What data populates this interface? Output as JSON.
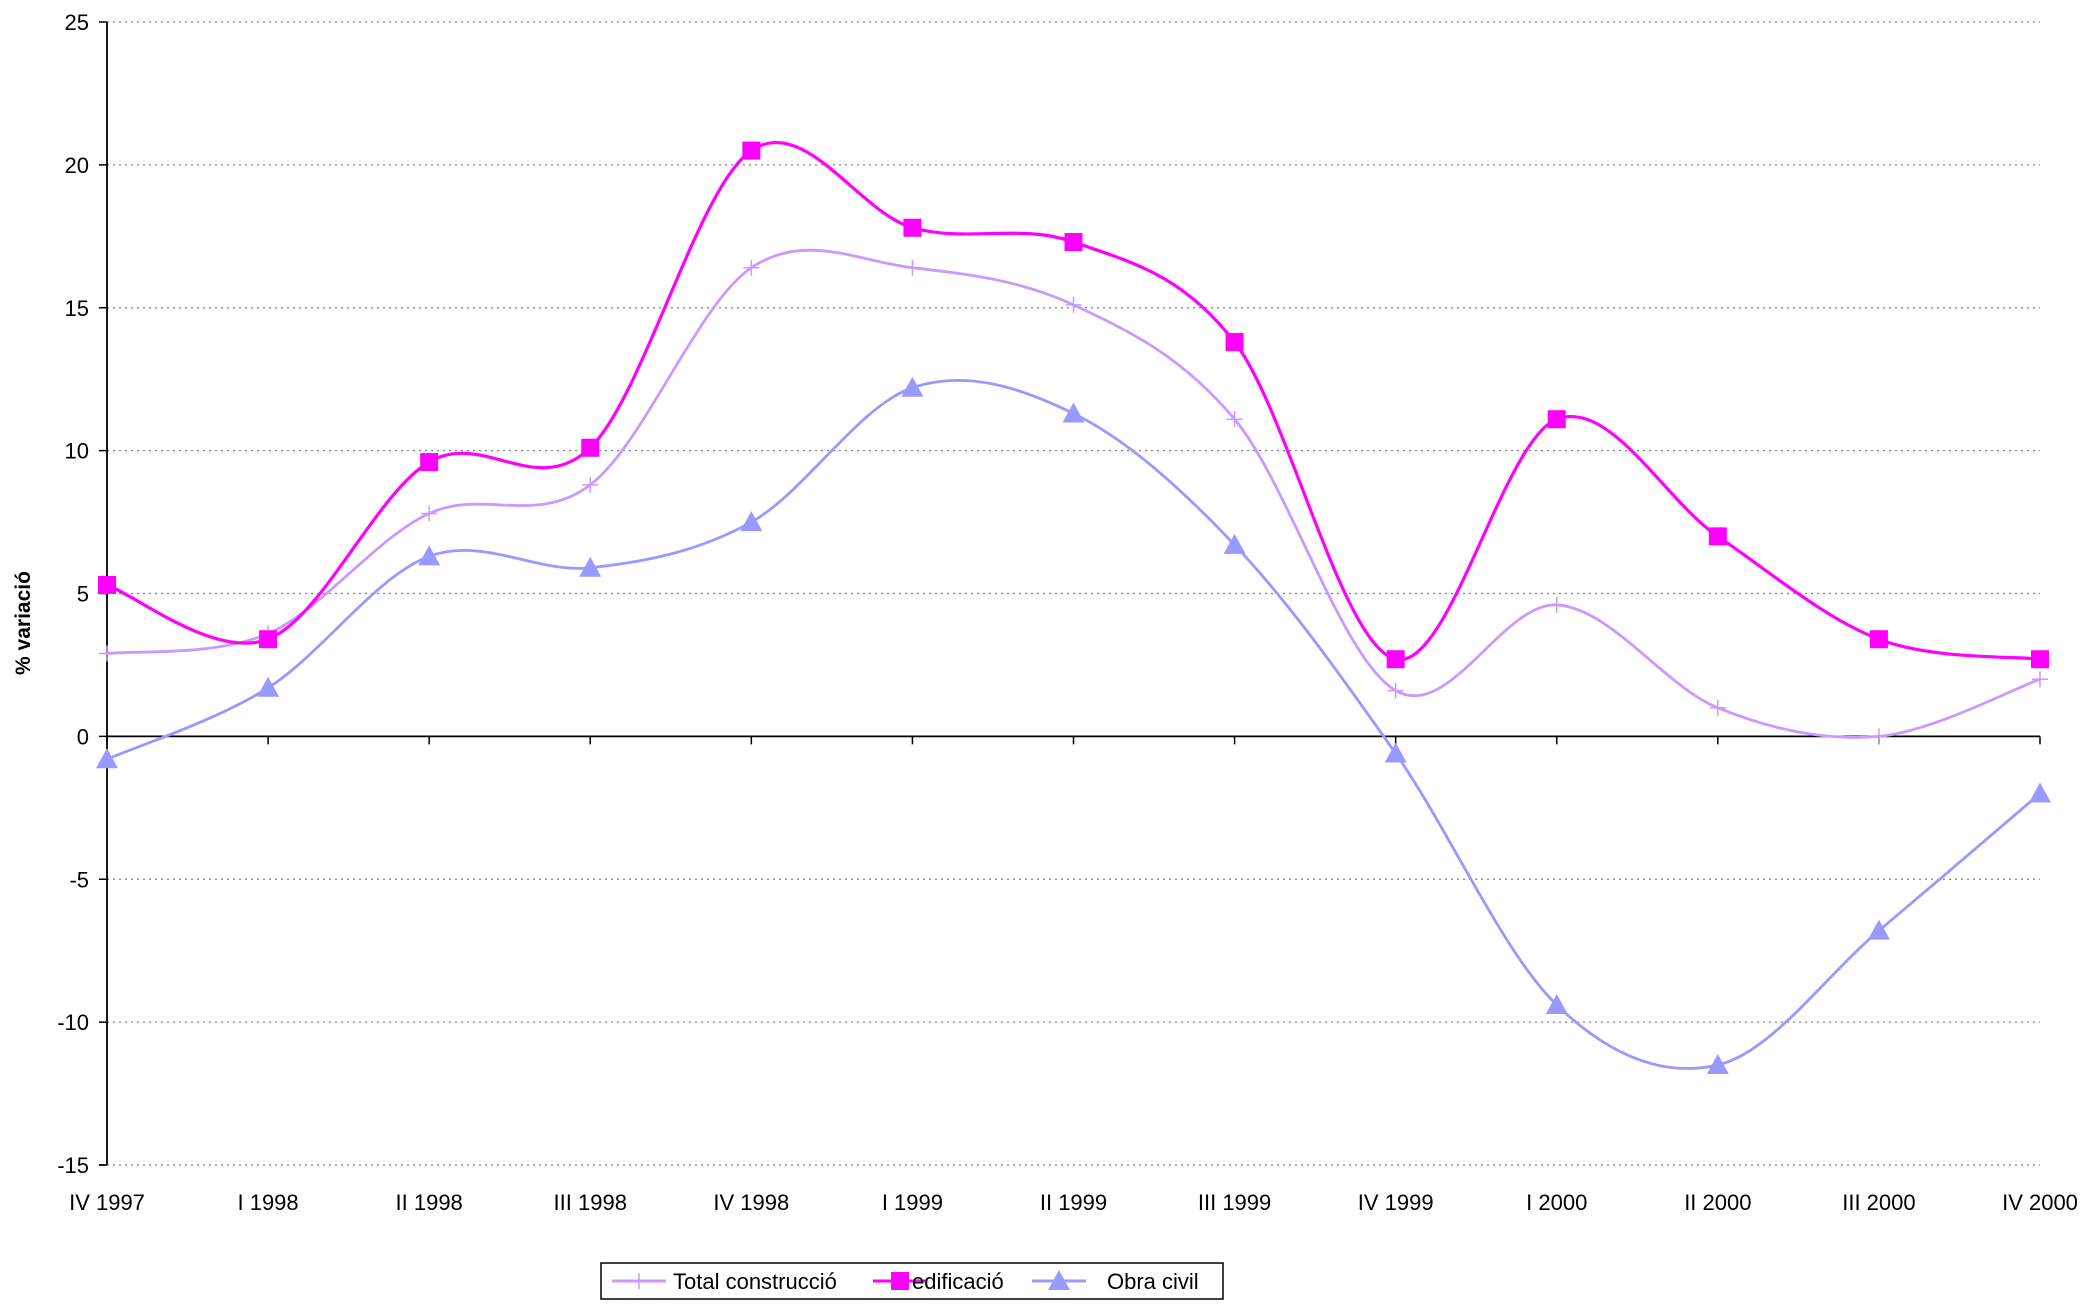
{
  "chart_data": {
    "type": "line",
    "title": "",
    "xlabel": "",
    "ylabel": "% variació",
    "categories": [
      "IV 1997",
      "I 1998",
      "II 1998",
      "III 1998",
      "IV 1998",
      "I 1999",
      "II 1999",
      "III 1999",
      "IV 1999",
      "I 2000",
      "II 2000",
      "III 2000",
      "IV 2000"
    ],
    "ylim": [
      -15,
      25
    ],
    "yticks": [
      -15,
      -10,
      -5,
      0,
      5,
      10,
      15,
      20,
      25
    ],
    "grid": "horizontal dotted",
    "smoothed": true,
    "legend_position": "bottom",
    "series": [
      {
        "name": "Total construcció",
        "color": "#cc99ff",
        "marker": "plus",
        "values": [
          2.9,
          3.6,
          7.8,
          8.8,
          16.4,
          16.4,
          15.1,
          11.1,
          1.6,
          4.6,
          1.0,
          0.0,
          2.0
        ]
      },
      {
        "name": "edificació",
        "color": "#ff00ff",
        "marker": "square",
        "values": [
          5.3,
          3.4,
          9.6,
          10.1,
          20.5,
          17.8,
          17.3,
          13.8,
          2.7,
          11.1,
          7.0,
          3.4,
          2.7
        ]
      },
      {
        "name": "Obra civil",
        "color": "#9999ff",
        "marker": "triangle",
        "values": [
          -0.8,
          1.7,
          6.3,
          5.9,
          7.5,
          12.2,
          11.3,
          6.7,
          -0.6,
          -9.4,
          -11.5,
          -6.8,
          -2.0
        ]
      }
    ]
  }
}
